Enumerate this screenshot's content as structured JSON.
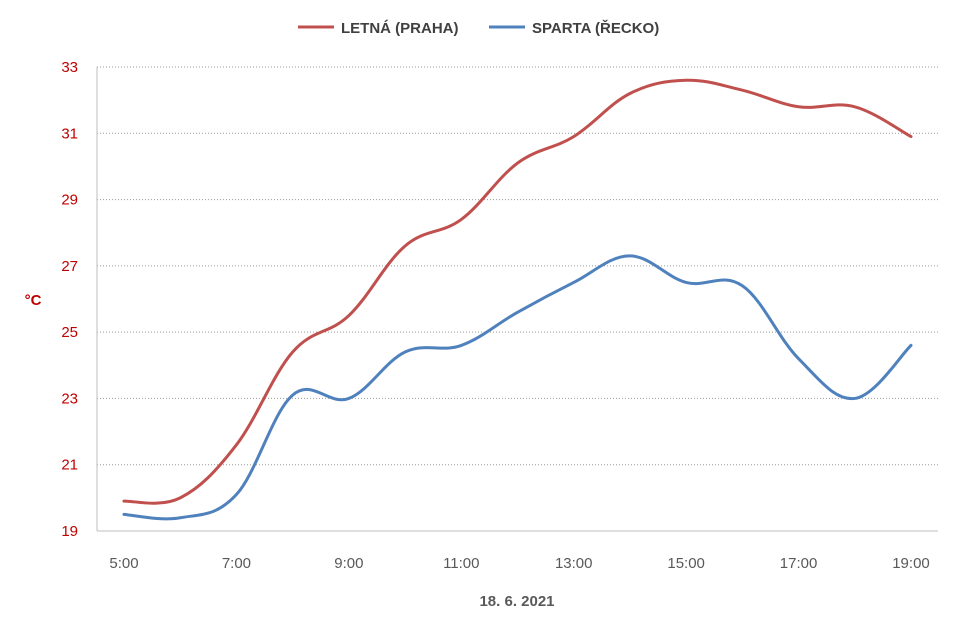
{
  "chart_data": {
    "type": "line",
    "xlabel": "18. 6. 2021",
    "ylabel": "°C",
    "x": [
      "5:00",
      "6:00",
      "7:00",
      "8:00",
      "9:00",
      "10:00",
      "11:00",
      "12:00",
      "13:00",
      "14:00",
      "15:00",
      "16:00",
      "17:00",
      "18:00",
      "19:00"
    ],
    "x_tick_labels": [
      "5:00",
      "7:00",
      "9:00",
      "11:00",
      "13:00",
      "15:00",
      "17:00",
      "19:00"
    ],
    "y_ticks": [
      "19",
      "21",
      "23",
      "25",
      "27",
      "29",
      "31",
      "33"
    ],
    "ylim": [
      19,
      33
    ],
    "grid": true,
    "legend": "top",
    "series": [
      {
        "name": "LETNÁ (PRAHA)",
        "color": "#c0504d",
        "values": [
          19.9,
          20.0,
          21.6,
          24.4,
          25.5,
          27.6,
          28.4,
          30.1,
          30.9,
          32.2,
          32.6,
          32.3,
          31.8,
          31.8,
          30.9
        ]
      },
      {
        "name": "SPARTA (ŘECKO)",
        "color": "#4f81bd",
        "values": [
          19.5,
          19.4,
          20.1,
          23.1,
          23.0,
          24.4,
          24.6,
          25.6,
          26.5,
          27.3,
          26.5,
          26.4,
          24.2,
          23.0,
          24.6
        ]
      }
    ],
    "axis_color": "#c00000"
  }
}
